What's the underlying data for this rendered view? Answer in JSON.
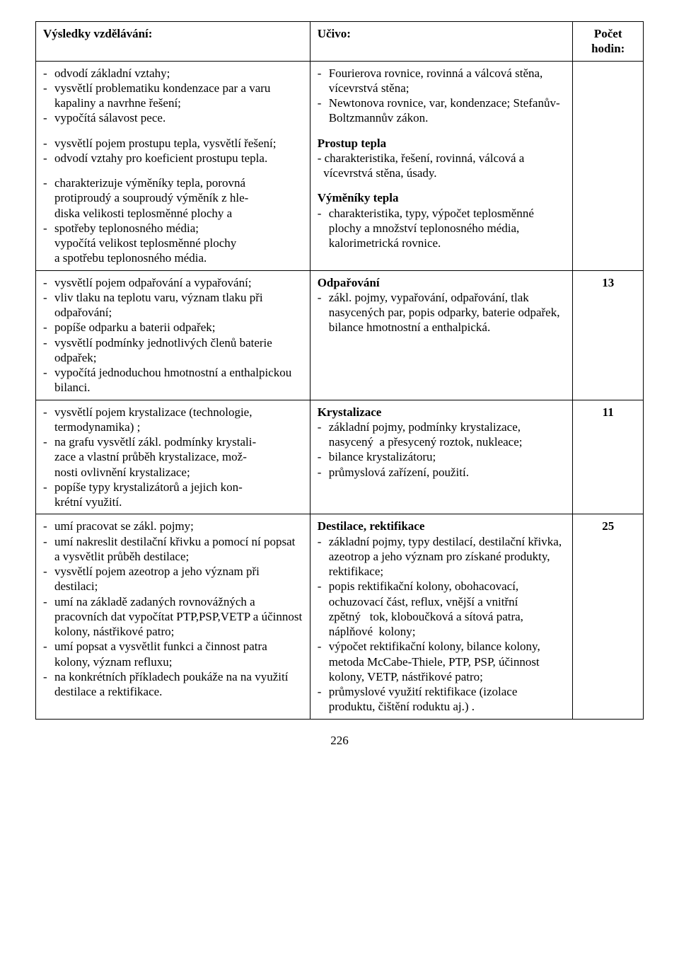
{
  "header": {
    "col1": "Výsledky vzdělávání:",
    "col2": "Učivo:",
    "col3_line1": "Počet",
    "col3_line2": "hodin:"
  },
  "row1": {
    "left": {
      "b1": [
        "odvodí základní vztahy;",
        "vysvětlí problematiku kondenzace par a varu kapaliny a navrhne řešení;",
        "vypočítá sálavost pece."
      ],
      "b2": [
        "vysvětlí pojem prostupu tepla, vysvětlí řešení;",
        "odvodí vztahy pro koeficient prostupu tepla."
      ],
      "b3_item1_line1": "charakterizuje výměníky tepla, porovná protiproudý a souproudý výměník z hle-",
      "b3_item1_line2": "diska velikosti teplosměnné plochy a",
      "b3_item2": "spotřeby teplonosného média;",
      "b3_cont1": "vypočítá velikost teplosměnné plochy",
      "b3_cont2": "a spotřebu teplonosného média."
    },
    "right": {
      "b1": [
        "Fourierova rovnice, rovinná a válcová stěna, vícevrstvá stěna;",
        "Newtonova rovnice, var, kondenzace; Stefanův-Boltzmannův zákon."
      ],
      "h2": "Prostup tepla",
      "b2_line": "- charakteristika, řešení, rovinná, válcová a",
      "b2_line2": "  vícevrstvá stěna, úsady.",
      "h3": "Výměníky tepla",
      "b3": [
        "charakteristika, typy, výpočet teplosměnné plochy a množství teplonosného média, kalorimetrická rovnice."
      ]
    },
    "hours": ""
  },
  "row2": {
    "left": {
      "items": [
        "vysvětlí pojem odpařování a vypařování;",
        "vliv tlaku na teplotu varu, význam tlaku při odpařování;",
        "popíše odparku a baterii odpařek;",
        "vysvětlí podmínky jednotlivých členů baterie odpařek;",
        "vypočítá jednoduchou hmotnostní a enthalpickou bilanci."
      ]
    },
    "right": {
      "h": "Odpařování",
      "items": [
        "zákl. pojmy, vypařování, odpařování, tlak nasycených par, popis odparky, baterie odpařek, bilance hmotnostní a enthalpická."
      ]
    },
    "hours": "13"
  },
  "row3": {
    "left": {
      "i1": "vysvětlí pojem krystalizace (technologie, termodynamika) ;",
      "i2a": "na grafu vysvětlí zákl. podmínky krystali-",
      "i2b": "zace a vlastní průběh krystalizace, mož-",
      "i2c": "nosti ovlivnění krystalizace;",
      "i3a": "popíše typy krystalizátorů a jejich kon-",
      "i3b": "krétní využití."
    },
    "right": {
      "h": "Krystalizace",
      "items": [
        "základní pojmy, podmínky krystalizace, nasycený  a přesycený roztok, nukleace;",
        "bilance krystalizátoru;",
        "průmyslová zařízení, použití."
      ]
    },
    "hours": "11"
  },
  "row4": {
    "left": {
      "items": [
        "umí pracovat se zákl. pojmy;",
        "umí nakreslit destilační křivku a pomocí ní popsat a vysvětlit průběh destilace;",
        "vysvětlí pojem azeotrop a jeho význam při destilaci;",
        "umí na základě zadaných rovnovážných a pracovních dat vypočítat PTP,PSP,VETP a účinnost kolony, nástřikové patro;",
        "umí popsat a vysvětlit funkci a činnost patra kolony, význam refluxu;",
        "na konkrétních příkladech poukáže na na využití destilace a rektifikace."
      ]
    },
    "right": {
      "h": "Destilace, rektifikace",
      "items": [
        "základní pojmy, typy destilací, destilační křivka, azeotrop a jeho význam pro získané produkty, rektifikace;",
        "popis rektifikační kolony, obohacovací, ochuzovací část, reflux, vnější a vnitřní zpětný   tok, kloboučková a sítová patra, náplňové  kolony;",
        "výpočet rektifikační kolony, bilance kolony, metoda McCabe-Thiele, PTP, PSP, účinnost kolony, VETP, nástřikové patro;",
        "průmyslové využití rektifikace (izolace produktu, čištění roduktu aj.) ."
      ]
    },
    "hours": "25"
  },
  "pagenum": "226"
}
